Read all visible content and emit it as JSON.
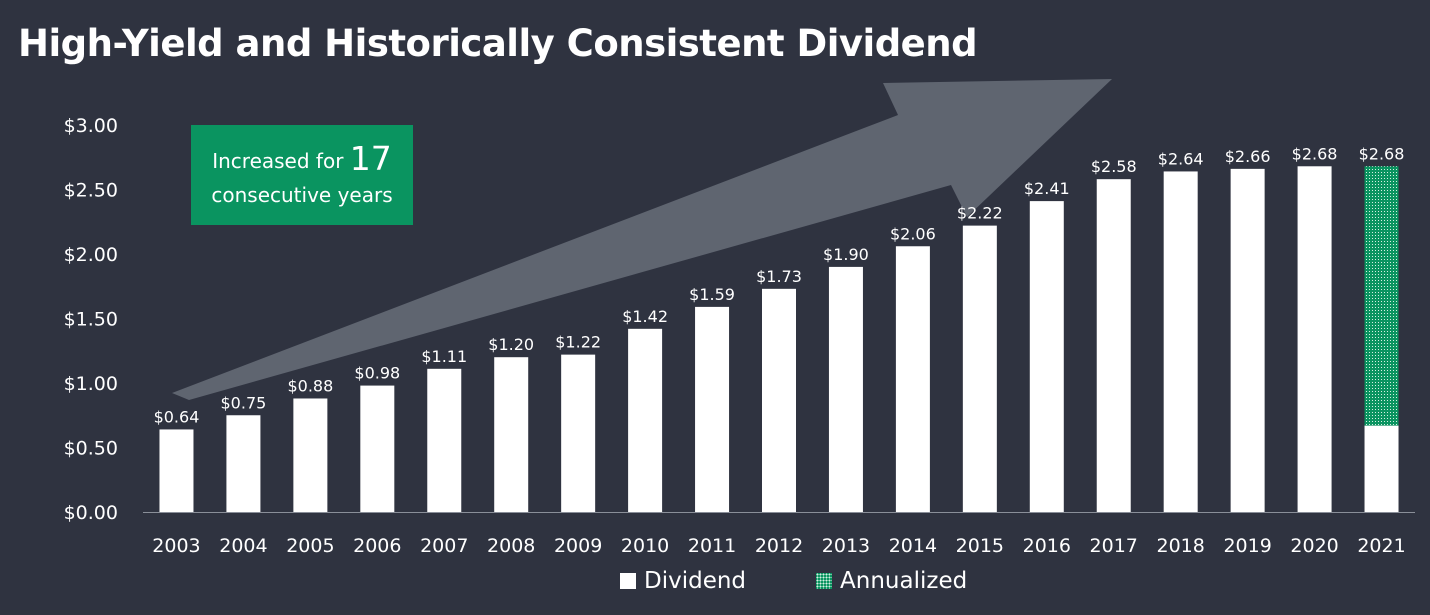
{
  "title": "High-Yield and Historically Consistent Dividend",
  "callout": {
    "prefix": "Increased for",
    "number": "17",
    "suffix": "consecutive years"
  },
  "colors": {
    "background": "#2f3340",
    "dividend": "#ffffff",
    "annualized": "#0a9460",
    "callout": "#0a9460",
    "arrow": "#5f6570"
  },
  "chart_data": {
    "type": "bar",
    "categories": [
      "2003",
      "2004",
      "2005",
      "2006",
      "2007",
      "2008",
      "2009",
      "2010",
      "2011",
      "2012",
      "2013",
      "2014",
      "2015",
      "2016",
      "2017",
      "2018",
      "2019",
      "2020",
      "2021"
    ],
    "series": [
      {
        "name": "Dividend",
        "values": [
          0.64,
          0.75,
          0.88,
          0.98,
          1.11,
          1.2,
          1.22,
          1.42,
          1.59,
          1.73,
          1.9,
          2.06,
          2.22,
          2.41,
          2.58,
          2.64,
          2.66,
          2.68,
          0.67
        ]
      },
      {
        "name": "Annualized",
        "values": [
          0,
          0,
          0,
          0,
          0,
          0,
          0,
          0,
          0,
          0,
          0,
          0,
          0,
          0,
          0,
          0,
          0,
          0,
          2.01
        ]
      }
    ],
    "data_labels": [
      "$0.64",
      "$0.75",
      "$0.88",
      "$0.98",
      "$1.11",
      "$1.20",
      "$1.22",
      "$1.42",
      "$1.59",
      "$1.73",
      "$1.90",
      "$2.06",
      "$2.22",
      "$2.41",
      "$2.58",
      "$2.64",
      "$2.66",
      "$2.68",
      "$2.68"
    ],
    "yticks": [
      "$0.00",
      "$0.50",
      "$1.00",
      "$1.50",
      "$2.00",
      "$2.50",
      "$3.00"
    ],
    "ylim": [
      0,
      3.0
    ],
    "stacked": true,
    "legend_position": "bottom",
    "grid": false
  },
  "legend": {
    "dividend_label": "Dividend",
    "annualized_label": "Annualized"
  }
}
